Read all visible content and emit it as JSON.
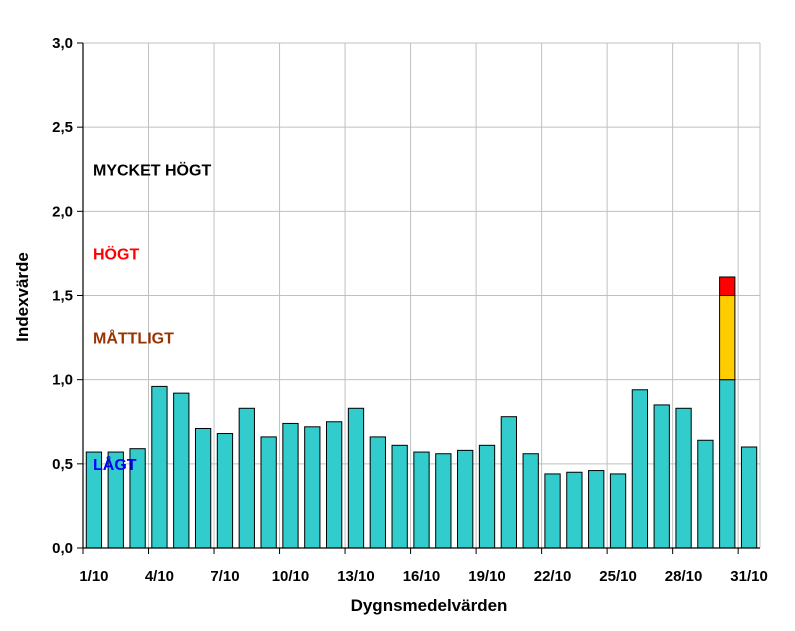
{
  "chart_data": {
    "type": "bar",
    "title": "",
    "xlabel": "Dygnsmedelvärden",
    "ylabel": "Indexvärde",
    "ylim": [
      0,
      3.0
    ],
    "y_ticks": [
      "0,0",
      "0,5",
      "1,0",
      "1,5",
      "2,0",
      "2,5",
      "3,0"
    ],
    "x_tick_labels": [
      "1/10",
      "4/10",
      "7/10",
      "10/10",
      "13/10",
      "16/10",
      "19/10",
      "22/10",
      "25/10",
      "28/10",
      "31/10"
    ],
    "grid": true,
    "categories": [
      "1/10",
      "2/10",
      "3/10",
      "4/10",
      "5/10",
      "6/10",
      "7/10",
      "8/10",
      "9/10",
      "10/10",
      "11/10",
      "12/10",
      "13/10",
      "14/10",
      "15/10",
      "16/10",
      "17/10",
      "18/10",
      "19/10",
      "20/10",
      "21/10",
      "22/10",
      "23/10",
      "24/10",
      "25/10",
      "26/10",
      "27/10",
      "28/10",
      "29/10",
      "30/10",
      "31/10"
    ],
    "values": [
      0.57,
      0.57,
      0.59,
      0.96,
      0.92,
      0.71,
      0.68,
      0.83,
      0.66,
      0.74,
      0.72,
      0.75,
      0.83,
      0.66,
      0.61,
      0.57,
      0.56,
      0.58,
      0.61,
      0.78,
      0.56,
      0.44,
      0.45,
      0.46,
      0.44,
      0.94,
      0.85,
      0.83,
      0.64,
      1.61,
      0.6
    ],
    "bands": [
      {
        "label": "LÅGT",
        "from": 0,
        "to": 1.0,
        "color": "#33cccc",
        "label_color": "#0000ff"
      },
      {
        "label": "MÅTTLIGT",
        "from": 1.0,
        "to": 1.5,
        "color": "#ffcc00",
        "label_color": "#993300"
      },
      {
        "label": "HÖGT",
        "from": 1.5,
        "to": 2.0,
        "color": "#ff0000",
        "label_color": "#ff0000"
      },
      {
        "label": "MYCKET HÖGT",
        "from": 2.0,
        "to": 3.0,
        "color": "#800080",
        "label_color": "#000000"
      }
    ],
    "bar_outline": "#000000",
    "grid_color": "#c0c0c0"
  }
}
